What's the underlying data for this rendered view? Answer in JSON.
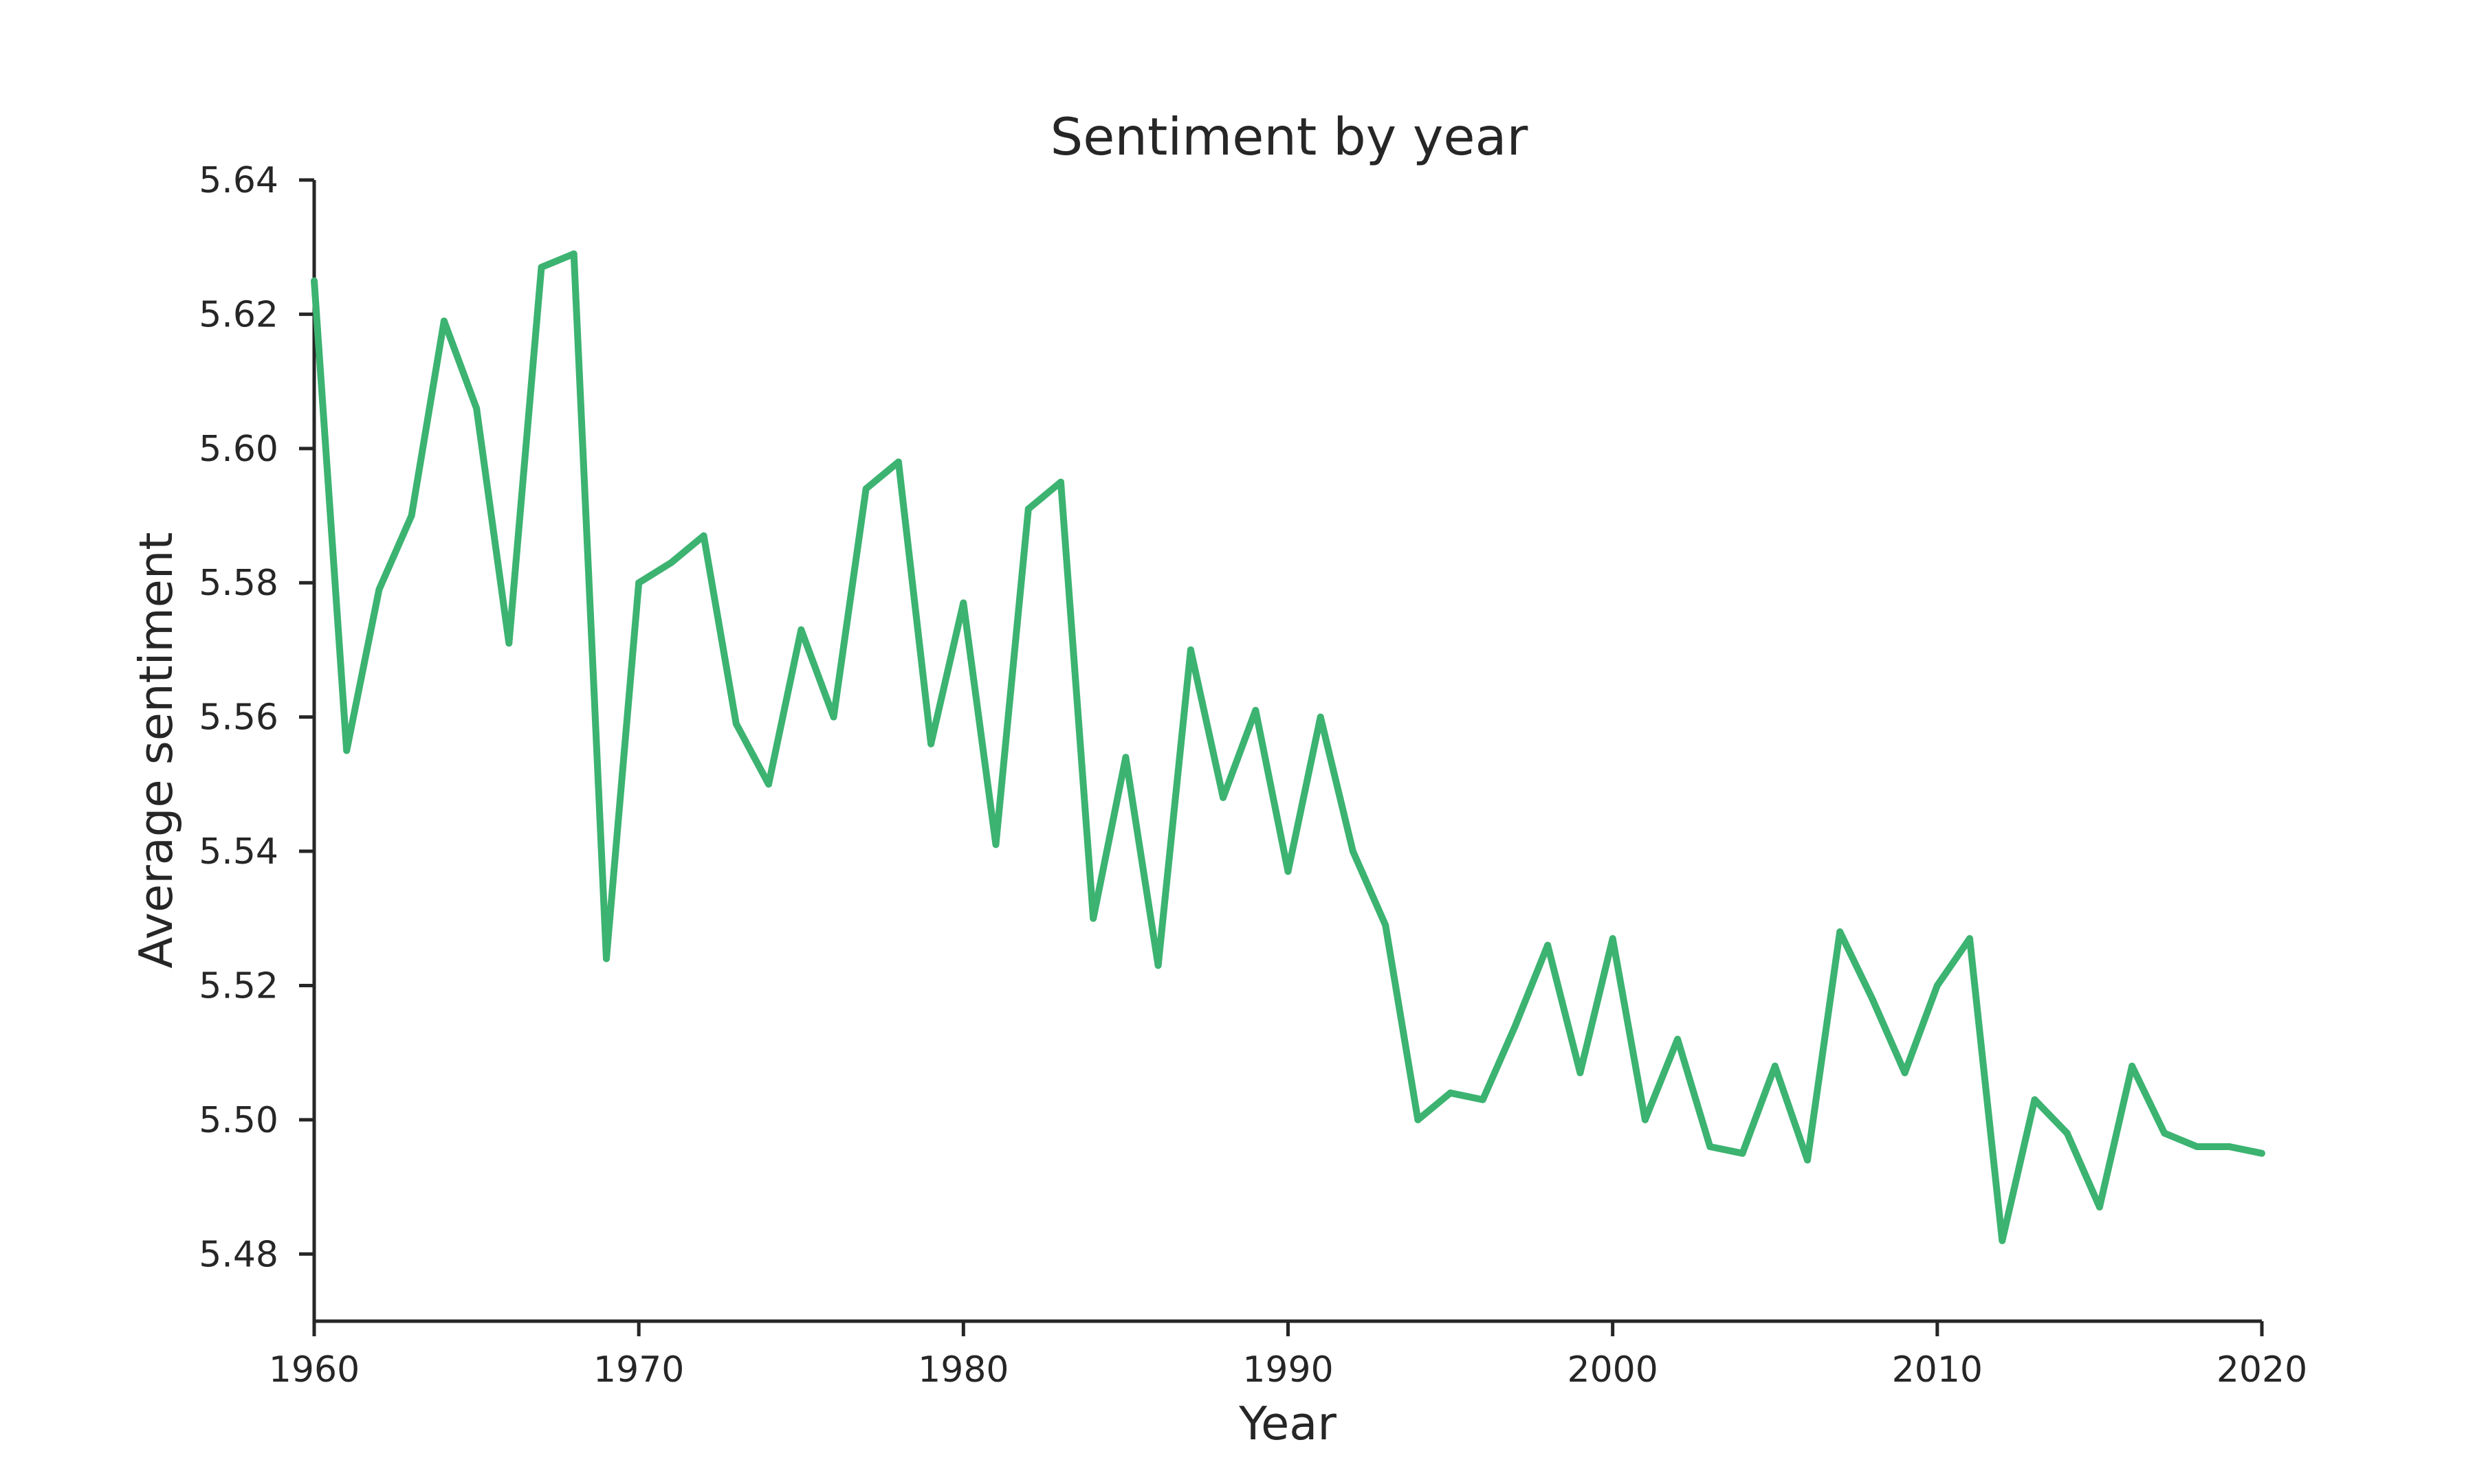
{
  "chart_data": {
    "type": "line",
    "title": "Sentiment by year",
    "xlabel": "Year",
    "ylabel": "Average sentiment",
    "xlim": [
      1960,
      2020
    ],
    "ylim": [
      5.47,
      5.64
    ],
    "xticks": [
      1960,
      1970,
      1980,
      1990,
      2000,
      2010,
      2020
    ],
    "xtick_labels": [
      "1960",
      "1970",
      "1980",
      "1990",
      "2000",
      "2010",
      "2020"
    ],
    "yticks": [
      5.48,
      5.5,
      5.52,
      5.54,
      5.56,
      5.58,
      5.6,
      5.62,
      5.64
    ],
    "ytick_labels": [
      "5.48",
      "5.50",
      "5.52",
      "5.54",
      "5.56",
      "5.58",
      "5.60",
      "5.62",
      "5.64"
    ],
    "grid": false,
    "series": [
      {
        "color": "#3cb371",
        "x": [
          1960,
          1961,
          1962,
          1963,
          1964,
          1965,
          1966,
          1967,
          1968,
          1969,
          1970,
          1971,
          1972,
          1973,
          1974,
          1975,
          1976,
          1977,
          1978,
          1979,
          1980,
          1981,
          1982,
          1983,
          1984,
          1985,
          1986,
          1987,
          1988,
          1989,
          1990,
          1991,
          1992,
          1993,
          1994,
          1995,
          1996,
          1997,
          1998,
          1999,
          2000,
          2001,
          2002,
          2003,
          2004,
          2005,
          2006,
          2007,
          2008,
          2009,
          2010,
          2011,
          2012,
          2013,
          2014,
          2015,
          2016,
          2017,
          2018,
          2019,
          2020
        ],
        "values": [
          5.625,
          5.555,
          5.579,
          5.59,
          5.619,
          5.606,
          5.571,
          5.627,
          5.629,
          5.524,
          5.58,
          5.583,
          5.587,
          5.559,
          5.55,
          5.573,
          5.56,
          5.594,
          5.598,
          5.556,
          5.577,
          5.541,
          5.591,
          5.595,
          5.53,
          5.554,
          5.523,
          5.57,
          5.548,
          5.561,
          5.537,
          5.56,
          5.54,
          5.529,
          5.5,
          5.504,
          5.503,
          5.514,
          5.526,
          5.507,
          5.527,
          5.5,
          5.512,
          5.496,
          5.495,
          5.508,
          5.494,
          5.528,
          5.518,
          5.507,
          5.52,
          5.527,
          5.482,
          5.503,
          5.498,
          5.487,
          5.508,
          5.498,
          5.496,
          5.496,
          5.495
        ]
      }
    ]
  }
}
